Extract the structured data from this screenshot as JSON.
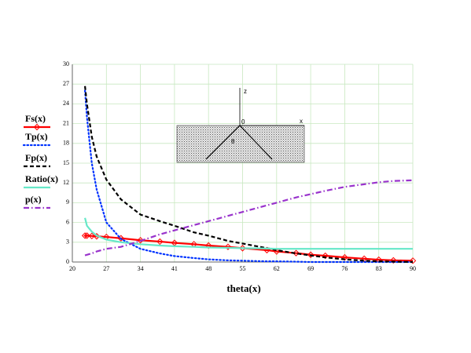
{
  "chart_data": {
    "type": "line",
    "x_label": "theta(x)",
    "x": [
      22.6,
      23,
      24,
      25,
      27,
      30,
      34,
      38,
      41,
      45,
      48,
      52,
      55,
      60,
      62,
      66,
      69,
      72,
      76,
      80,
      83,
      86,
      90
    ],
    "series": [
      {
        "name": "Fs(x)",
        "color": "#ff0000",
        "dash": "solid",
        "marker": "diamond",
        "values": [
          4.0,
          4.0,
          3.95,
          3.9,
          3.8,
          3.6,
          3.3,
          3.1,
          2.9,
          2.7,
          2.5,
          2.3,
          2.1,
          1.8,
          1.6,
          1.35,
          1.1,
          0.95,
          0.7,
          0.5,
          0.35,
          0.25,
          0.2
        ]
      },
      {
        "name": "Tp(x)",
        "color": "#0033ff",
        "dash": "dotted",
        "values": [
          26,
          22,
          15,
          11,
          6,
          3.5,
          2.0,
          1.3,
          0.9,
          0.6,
          0.4,
          0.25,
          0.2,
          0.1,
          0.1,
          0.05,
          0,
          0,
          0,
          0,
          0,
          0,
          0
        ]
      },
      {
        "name": "Fp(x)",
        "color": "#000000",
        "dash": "dashed",
        "values": [
          26.7,
          24,
          19,
          16,
          12.5,
          9.5,
          7.2,
          6.2,
          5.5,
          4.5,
          4.0,
          3.2,
          2.8,
          2.1,
          1.8,
          1.3,
          1.0,
          0.7,
          0.4,
          0.2,
          0.1,
          0.05,
          0
        ]
      },
      {
        "name": "Ratio(x)",
        "color": "#66e8c8",
        "dash": "solid",
        "values": [
          6.7,
          5.5,
          4.6,
          4.0,
          3.4,
          3.0,
          2.7,
          2.5,
          2.4,
          2.3,
          2.2,
          2.15,
          2.1,
          2.05,
          2.0,
          2.0,
          2.0,
          2.0,
          2.0,
          2.0,
          2.0,
          2.0,
          2.0
        ]
      },
      {
        "name": "p(x)",
        "color": "#9933cc",
        "dash": "dashdot",
        "values": [
          1.0,
          1.1,
          1.3,
          1.6,
          2.0,
          2.3,
          3.2,
          4.2,
          4.8,
          5.6,
          6.2,
          7.0,
          7.6,
          8.6,
          9.0,
          9.8,
          10.3,
          10.8,
          11.4,
          11.8,
          12.1,
          12.3,
          12.4
        ]
      }
    ],
    "xlim": [
      20,
      90
    ],
    "xticks": [
      20,
      27,
      34,
      41,
      48,
      55,
      62,
      69,
      76,
      83,
      90
    ],
    "ylim": [
      0,
      30
    ],
    "yticks": [
      0,
      3,
      6,
      9,
      12,
      15,
      18,
      21,
      24,
      27,
      30
    ],
    "grid": true,
    "grid_color": "#c8e8c0",
    "legend": "left",
    "inset_labels": [
      "z",
      "x",
      "0",
      "θ"
    ]
  }
}
